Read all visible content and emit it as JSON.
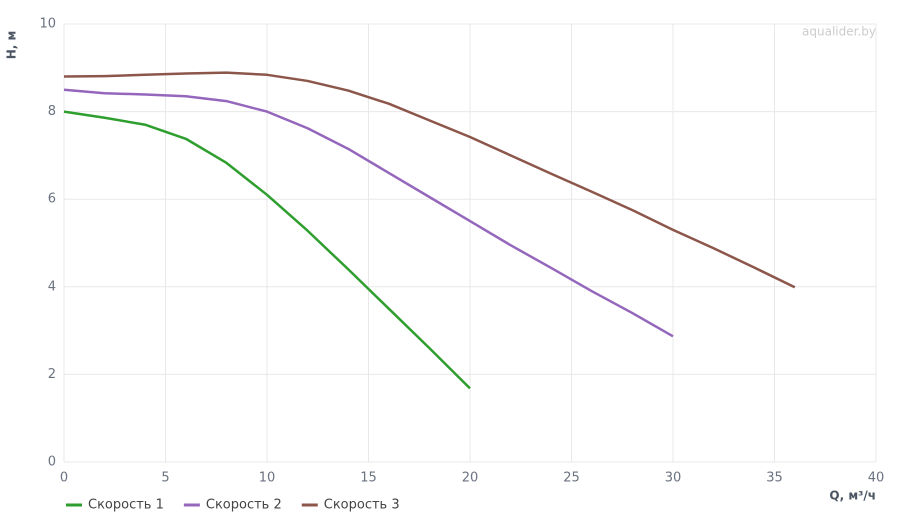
{
  "chart_data": {
    "type": "line",
    "watermark": "aqualider.by",
    "x_label": "Q, м³/ч",
    "y_label": "H, м",
    "xlim": [
      0,
      40
    ],
    "xticks": [
      0,
      5,
      10,
      15,
      20,
      25,
      30,
      35,
      40
    ],
    "ylim": [
      0,
      10
    ],
    "yticks": [
      0,
      2,
      4,
      6,
      8,
      10
    ],
    "grid": true,
    "legend": "bottom-left",
    "series": [
      {
        "name": "Скорость 1",
        "color": "#2e9e2e",
        "x": [
          0,
          2,
          4,
          6,
          8,
          10,
          12,
          14,
          16,
          18,
          20
        ],
        "values": [
          8.0,
          7.86,
          7.7,
          7.38,
          6.83,
          6.1,
          5.28,
          4.4,
          3.5,
          2.6,
          1.68
        ]
      },
      {
        "name": "Скорость 2",
        "color": "#9467bd",
        "x": [
          0,
          2,
          4,
          6,
          8,
          10,
          12,
          14,
          16,
          18,
          20,
          22,
          24,
          26,
          28,
          30
        ],
        "values": [
          8.5,
          8.42,
          8.39,
          8.35,
          8.24,
          8.0,
          7.62,
          7.15,
          6.6,
          6.05,
          5.5,
          4.95,
          4.43,
          3.9,
          3.4,
          2.87
        ]
      },
      {
        "name": "Скорость 3",
        "color": "#8c564b",
        "x": [
          0,
          2,
          4,
          6,
          8,
          10,
          12,
          14,
          16,
          18,
          20,
          22,
          24,
          26,
          28,
          30,
          32,
          34,
          36
        ],
        "values": [
          8.8,
          8.81,
          8.84,
          8.87,
          8.89,
          8.84,
          8.7,
          8.48,
          8.18,
          7.8,
          7.42,
          7.0,
          6.58,
          6.17,
          5.75,
          5.3,
          4.88,
          4.44,
          3.99
        ]
      }
    ]
  }
}
